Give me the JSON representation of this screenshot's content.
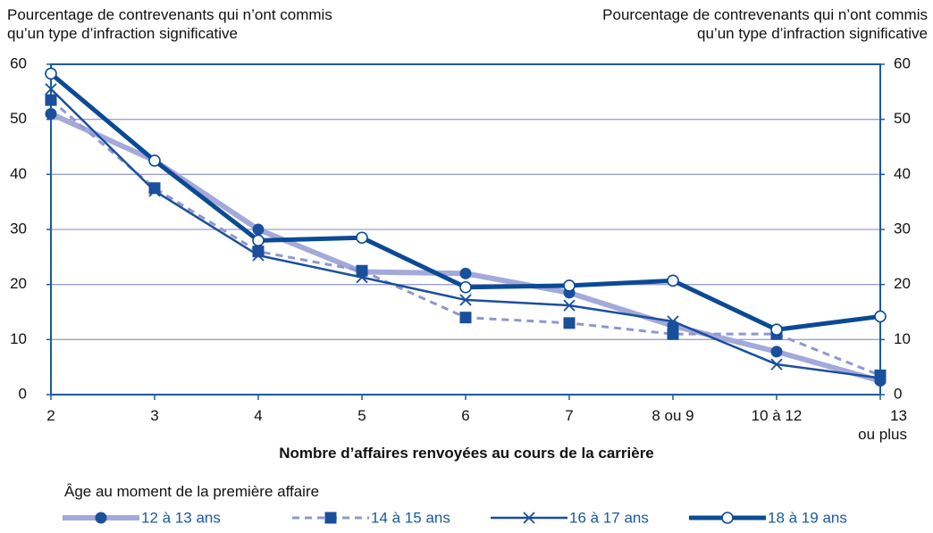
{
  "chart_data": {
    "type": "line",
    "y_label": "Pourcentage de contrevenants qui n’ont commis\nqu’un type d’infraction significative",
    "y2_label": "Pourcentage de contrevenants qui n’ont commis\nqu’un type d’infraction significative",
    "x_label": "Nombre d’affaires renvoyées au cours de la carrière",
    "legend_title": "Âge au moment de la première affaire",
    "categories": [
      "2",
      "3",
      "4",
      "5",
      "6",
      "7",
      "8 ou 9",
      "10 à 12",
      "13\nou plus"
    ],
    "ylim": [
      0,
      60
    ],
    "yticks": [
      0,
      10,
      20,
      30,
      40,
      50,
      60
    ],
    "y2lim": [
      0,
      60
    ],
    "y2ticks": [
      0,
      10,
      20,
      30,
      40,
      50,
      60
    ],
    "grid": true,
    "series": [
      {
        "name": "12 à 13 ans",
        "color": "#a3a9d9",
        "marker_color": "#1a4f9c",
        "marker": "circle",
        "line_width": 6,
        "dash": "none",
        "values": [
          51,
          42.5,
          30,
          22.3,
          22,
          18.5,
          12.5,
          7.8,
          2.5
        ]
      },
      {
        "name": "14 à 15 ans",
        "color": "#8f97cf",
        "marker_color": "#1a4f9c",
        "marker": "square",
        "line_width": 3,
        "dash": "8,6",
        "values": [
          53.5,
          37.5,
          26,
          22.5,
          14,
          13,
          11,
          11,
          3.5
        ]
      },
      {
        "name": "16 à 17 ans",
        "color": "#1a4f9c",
        "marker_color": "#1a4f9c",
        "marker": "x",
        "line_width": 2.5,
        "dash": "none",
        "values": [
          55.5,
          37,
          25.3,
          21.3,
          17.2,
          16.2,
          13.3,
          5.5,
          3
        ]
      },
      {
        "name": "18 à 19 ans",
        "color": "#0b4a94",
        "marker_color": "#0b4a94",
        "marker": "open-circle",
        "line_width": 5,
        "dash": "none",
        "values": [
          58.3,
          42.5,
          28,
          28.5,
          19.5,
          19.8,
          20.7,
          11.8,
          14.2
        ]
      }
    ]
  }
}
